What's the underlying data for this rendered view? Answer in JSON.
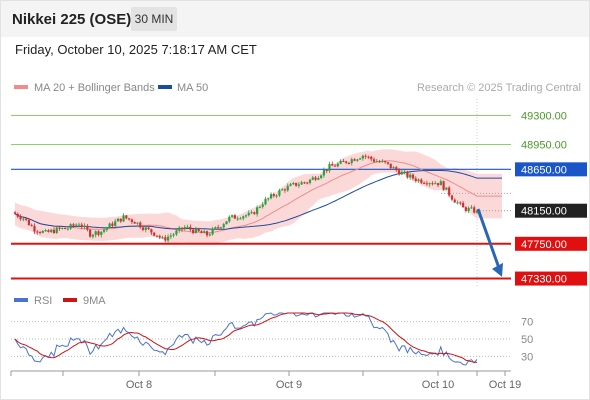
{
  "header": {
    "title": "Nikkei 225 (OSE)",
    "timeframe": "30 MIN"
  },
  "datetime": "Friday, October 10, 2025 7:18:17 AM CET",
  "legend": {
    "ma20": "MA 20 + Bollinger Bands",
    "ma50": "MA 50",
    "rsi": "RSI",
    "rsi_ma": "9MA"
  },
  "copyright": "Research © 2025 Trading Central",
  "colors": {
    "up": "#2e9e3e",
    "down": "#d23030",
    "ma20": "#f28b8b",
    "band": "#fbd2d2",
    "ma50": "#1c4c9c",
    "blue_level": "#1a56c8",
    "red_level": "#e01010",
    "green_level": "#8fcf6a",
    "green_text": "#4a9a2a",
    "current": "#222222",
    "rsi": "#4a72d0",
    "rsi_ma": "#cc1414",
    "arrow": "#2a66b4"
  },
  "chart_data": [
    {
      "type": "candlestick",
      "title": "Nikkei 225 (OSE)",
      "yrange": [
        47240,
        49500
      ],
      "x_tick_labels": [
        "Oct 8",
        "Oct 9",
        "Oct 10",
        "Oct 19"
      ],
      "levels": [
        {
          "value": 49300,
          "label": "49300.00",
          "style": "green-line"
        },
        {
          "value": 48950,
          "label": "48950.00",
          "style": "green-line"
        },
        {
          "value": 48650,
          "label": "48650.00",
          "style": "blue-line"
        },
        {
          "value": 48150,
          "label": "48150.00",
          "style": "current-price"
        },
        {
          "value": 47750,
          "label": "47750.00",
          "style": "red-line"
        },
        {
          "value": 47330,
          "label": "47330.00",
          "style": "red-line"
        }
      ],
      "projection": {
        "from": 48170,
        "to": 47350
      },
      "series": [
        {
          "name": "MA 20 + Bollinger Bands",
          "kind": "line"
        },
        {
          "name": "MA 50",
          "kind": "line"
        }
      ]
    },
    {
      "type": "line",
      "title": "RSI",
      "ylim": [
        20,
        80
      ],
      "y_ticks": [
        30,
        50,
        70
      ],
      "series": [
        {
          "name": "RSI",
          "kind": "line"
        },
        {
          "name": "9MA",
          "kind": "line"
        }
      ]
    }
  ]
}
